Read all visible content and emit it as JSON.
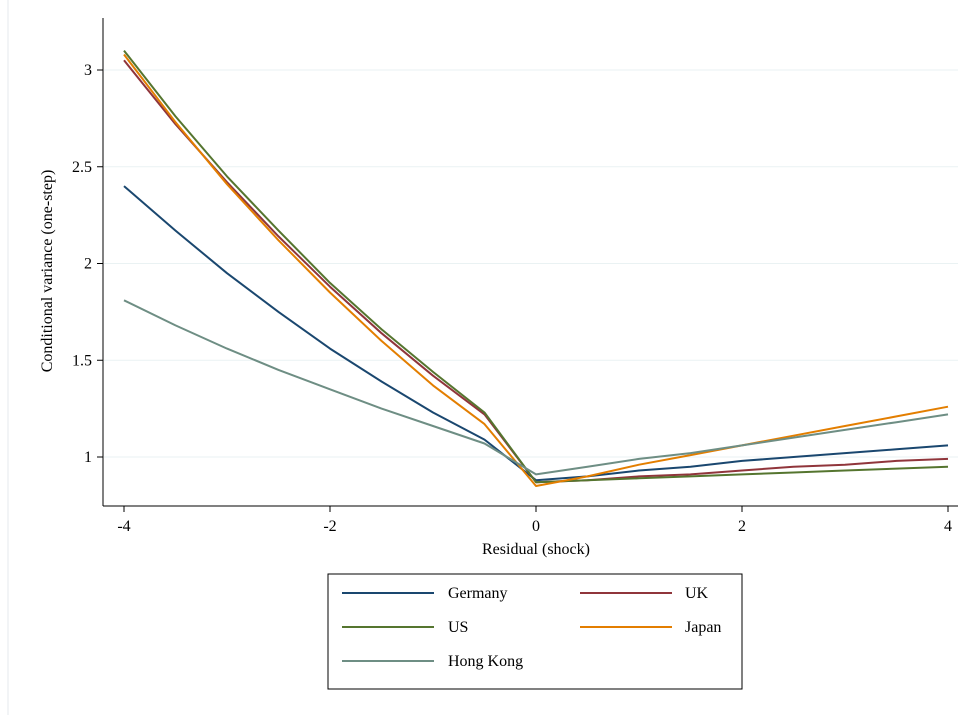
{
  "chart_data": {
    "type": "line",
    "xlabel": "Residual (shock)",
    "ylabel": "Conditional variance (one-step)",
    "xlim": [
      -4,
      4
    ],
    "ylim": [
      0.7,
      3.2
    ],
    "xticks": [
      -4,
      -2,
      0,
      2,
      4
    ],
    "xtick_labels": [
      "-4",
      "-2",
      "0",
      "2",
      "4"
    ],
    "yticks": [
      1,
      1.5,
      2,
      2.5,
      3
    ],
    "ytick_labels": [
      "1",
      "1.5",
      "2",
      "2.5",
      "3"
    ],
    "grid": "horizontal",
    "legend_position": "bottom",
    "x": [
      -4,
      -3.5,
      -3,
      -2.5,
      -2,
      -1.5,
      -1,
      -0.5,
      0,
      0.5,
      1,
      1.5,
      2,
      2.5,
      3,
      3.5,
      4
    ],
    "series": [
      {
        "name": "Germany",
        "color": "#1a476f",
        "values": [
          2.4,
          2.17,
          1.95,
          1.75,
          1.56,
          1.39,
          1.23,
          1.09,
          0.88,
          0.9,
          0.93,
          0.95,
          0.98,
          1.0,
          1.02,
          1.04,
          1.06
        ]
      },
      {
        "name": "UK",
        "color": "#90353b",
        "values": [
          3.05,
          2.72,
          2.42,
          2.14,
          1.88,
          1.64,
          1.42,
          1.22,
          0.87,
          0.88,
          0.9,
          0.91,
          0.93,
          0.95,
          0.96,
          0.98,
          0.99
        ]
      },
      {
        "name": "US",
        "color": "#55752f",
        "values": [
          3.1,
          2.76,
          2.45,
          2.17,
          1.9,
          1.66,
          1.44,
          1.23,
          0.87,
          0.88,
          0.89,
          0.9,
          0.91,
          0.92,
          0.93,
          0.94,
          0.95
        ]
      },
      {
        "name": "Japan",
        "color": "#e37e00",
        "values": [
          3.08,
          2.73,
          2.41,
          2.12,
          1.85,
          1.6,
          1.37,
          1.17,
          0.85,
          0.9,
          0.96,
          1.01,
          1.06,
          1.11,
          1.16,
          1.21,
          1.26
        ]
      },
      {
        "name": "Hong Kong",
        "color": "#6e8e84",
        "values": [
          1.81,
          1.68,
          1.56,
          1.45,
          1.35,
          1.25,
          1.16,
          1.07,
          0.91,
          0.95,
          0.99,
          1.02,
          1.06,
          1.1,
          1.14,
          1.18,
          1.22
        ]
      }
    ]
  }
}
